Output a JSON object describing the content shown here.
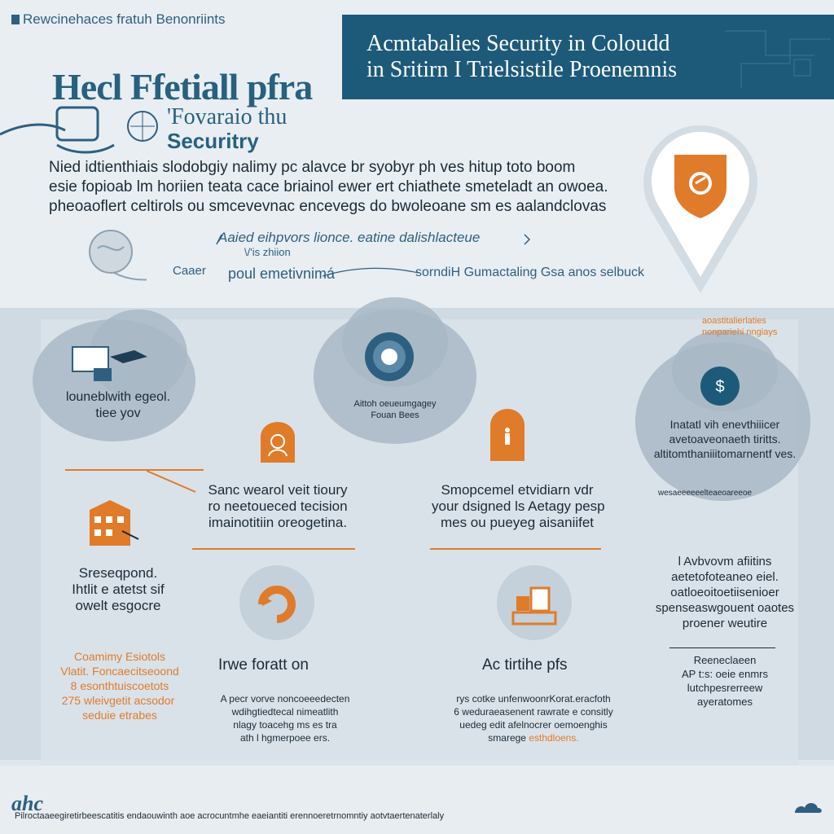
{
  "header": {
    "top_tag": "Rewcinehaces fratuh Benonriints",
    "banner_line1": "Acmtabalies Security in Coloudd",
    "banner_line2": "in Sritirn I Trielsistile Proenemnis",
    "big_title": "Hecl Ffetiall pfra",
    "sub_title_1": "'Fovaraio thu",
    "sub_title_2": "Securitry"
  },
  "intro": {
    "line1": "Nied idtienthiais slodobgiy nalimy pc alavce br syobyr ph ves hitup toto boom",
    "line2": "esie fopioab lm horiien teata cace briainol ewer ert chiathete smeteladt an owoea.",
    "line3": "pheoaoflert celtirols ou smcevevnac encevegs do bwoleoane sm es aalandclovas"
  },
  "flow": {
    "note": "Aaied eihpvors lionce. eatine dalishlacteue",
    "note_sub": "\\/'is zhiion",
    "caption_a": "Caaer",
    "caption_b": "poul emetivnimá",
    "caption_c": "sorndiH Gumactaling Gsa anos selbuck"
  },
  "clouds": {
    "left_label": "louneblwith egeol.",
    "left_sub": "tiee yov",
    "center_label": "Aittoh oeueumgagey",
    "center_sub": "Fouan Bees",
    "right_tag1": "aoastitalierlaties",
    "right_tag2": "nonpariehi nngiays",
    "right_text1": "Inatatl vih enevthiiicer",
    "right_text2": "avetoaveonaeth tiritts.",
    "right_text3": "altitomthaniiitomarnentf ves.",
    "right_foot": "wesaeeeeeelteaeoareeoe"
  },
  "cards": {
    "left_title1": "Sreseqpond.",
    "left_title2": "Ihtlit e atetst sif",
    "left_title3": "owelt esgocre",
    "left_orange1": "Coamimy Esiotols",
    "left_orange2": "Vlatit. Foncaecitseoond",
    "left_orange3": "8 esonthtuiscoetots",
    "left_orange4": "275 wleivgetit acsodor",
    "left_orange5": "seduie etrabes",
    "mid1_line1": "Sanc wearol veit tioury",
    "mid1_line2": "ro neetoueced tecision",
    "mid1_line3": "imainotitiin oreogetina.",
    "mid2_line1": "Smopcemel etvidiarn vdr",
    "mid2_line2": "your dsigned ls Aetagy pesp",
    "mid2_line3": "mes ou pueyeg aisaniifet",
    "right_line1": "l Avbvovm afiitins",
    "right_line2": "aetetofoteaneo eiel.",
    "right_line3": "oatloeoitoetiisenioer",
    "right_line4": "spenseaswgouent oaotes",
    "right_line5": "proener weutire",
    "right_small1": "Reeneclaeen",
    "right_small2": "AP t:s: oeie enmrs",
    "right_small3": "lutchpesrerreew",
    "right_small4": "ayeratomes"
  },
  "sections": {
    "heading1": "Irwe foratt on",
    "heading2": "Ac tirtihe pfs",
    "body1_line1": "A pecr vorve noncoeeedecten",
    "body1_line2": "wdihgtiedtecal nimeatlith",
    "body1_line3": "nlagy toacehg ms es tra",
    "body1_line4": "ath l hgmerpoee ers.",
    "body2_line1": "rys cotke unfenwoonrKorat.eracfoth",
    "body2_line2": "6 weduraeasenent rawrate e consitly",
    "body2_line3": "uedeg edit afelnocrer oemoenghis",
    "body2_line4": "smarege",
    "body2_highlight": "esthdloens."
  },
  "footer": {
    "logo": "ahc",
    "text": "Pilroctaaeegiretirbeescatitis endaouwinth aoe acrocuntmhe eaeiantiti erennoeretrnomntiy aotvtaertenaterlaly"
  },
  "colors": {
    "primary": "#1d5a7a",
    "accent": "#e07b2a",
    "band": "#cfdae3"
  }
}
